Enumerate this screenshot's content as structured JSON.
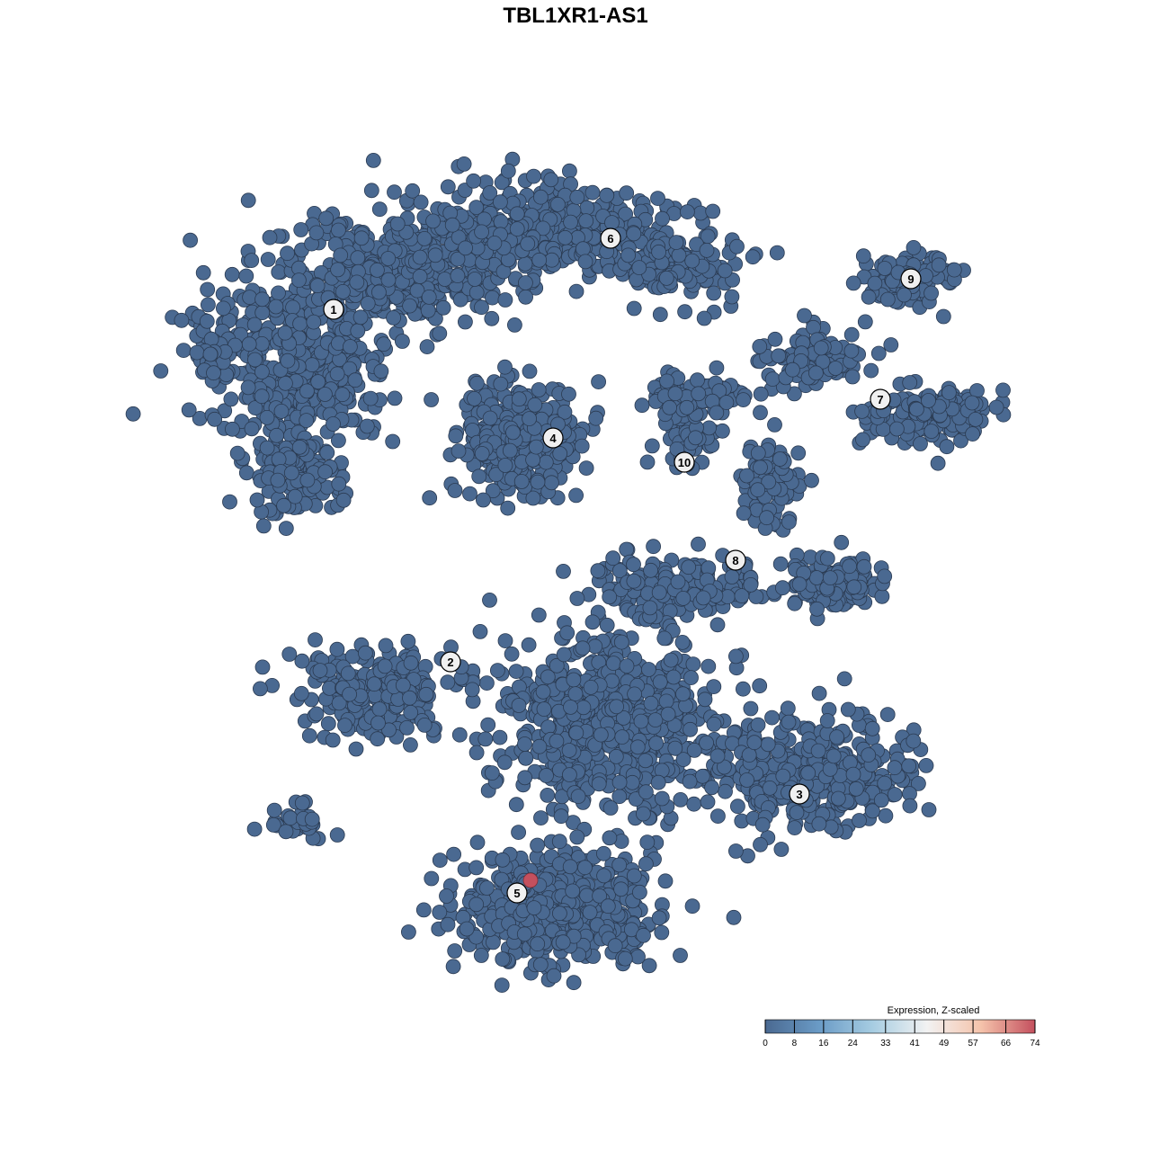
{
  "chart_data": {
    "type": "scatter",
    "title": "TBL1XR1-AS1",
    "xlabel": "",
    "ylabel": "",
    "grid": false,
    "axes_visible": false,
    "point_color_low": "#4a6991",
    "point_color_high": "#c4505e",
    "cluster_labels": [
      {
        "label": "1",
        "x": -26.9,
        "y": 29.6
      },
      {
        "label": "2",
        "x": -13.9,
        "y": -9.6
      },
      {
        "label": "3",
        "x": 24.9,
        "y": -24.3
      },
      {
        "label": "4",
        "x": -2.5,
        "y": 15.3
      },
      {
        "label": "5",
        "x": -6.5,
        "y": -35.3
      },
      {
        "label": "6",
        "x": 3.9,
        "y": 37.5
      },
      {
        "label": "7",
        "x": 33.9,
        "y": 19.6
      },
      {
        "label": "8",
        "x": 17.8,
        "y": 1.7
      },
      {
        "label": "9",
        "x": 37.3,
        "y": 33.0
      },
      {
        "label": "10",
        "x": 12.1,
        "y": 12.6
      }
    ],
    "highlighted_points": [
      {
        "x": -5.0,
        "y": -33.9,
        "value": 74
      }
    ],
    "baseline_value": 0,
    "legend": {
      "title": "Expression, Z-scaled",
      "position": "bottom-right",
      "ticks": [
        "0",
        "8",
        "16",
        "24",
        "33",
        "41",
        "49",
        "57",
        "66",
        "74"
      ],
      "colors": [
        "#4a6991",
        "#6a9bc6",
        "#a7cde2",
        "#f2f2f2",
        "#f5c3ab",
        "#c4505e"
      ]
    }
  }
}
